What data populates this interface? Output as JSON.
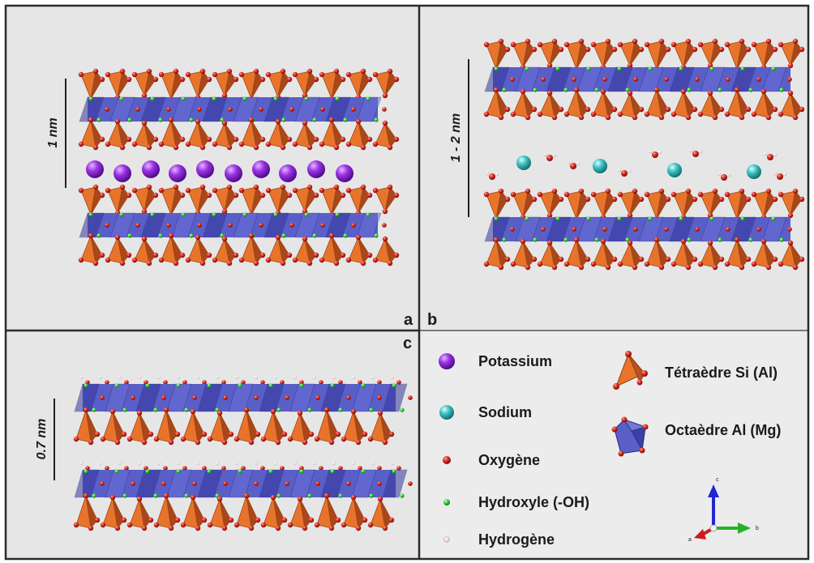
{
  "panels": {
    "a": {
      "letter": "a",
      "scale": "1 nm"
    },
    "b": {
      "letter": "b",
      "scale": "1 - 2 nm"
    },
    "c": {
      "letter": "c",
      "scale": "0.7 nm"
    }
  },
  "legend": {
    "potassium": "Potassium",
    "sodium": "Sodium",
    "oxygen": "Oxygène",
    "hydroxyl": "Hydroxyle (-OH)",
    "hydrogen": "Hydrogène",
    "tetrahedron": "Tétraèdre Si (Al)",
    "octahedron": "Octaèdre Al (Mg)"
  },
  "axes": {
    "a": "a",
    "b": "b",
    "c": "c"
  },
  "colors": {
    "background": "#e6e6e6",
    "border": "#2b2b2b",
    "tetrahedron": "#e8742c",
    "tetrahedron_dark": "#a9471a",
    "octahedron": "#5a5fc8",
    "octahedron_dark": "#33379a",
    "oxygen": "#d62a1e",
    "hydroxyl": "#3cd23c",
    "hydrogen": "#f3e8e8",
    "potassium": "#8a2be2",
    "sodium": "#3fc2c2",
    "axis_a": "#d11a1a",
    "axis_b": "#24b324",
    "axis_c": "#2424d6"
  }
}
